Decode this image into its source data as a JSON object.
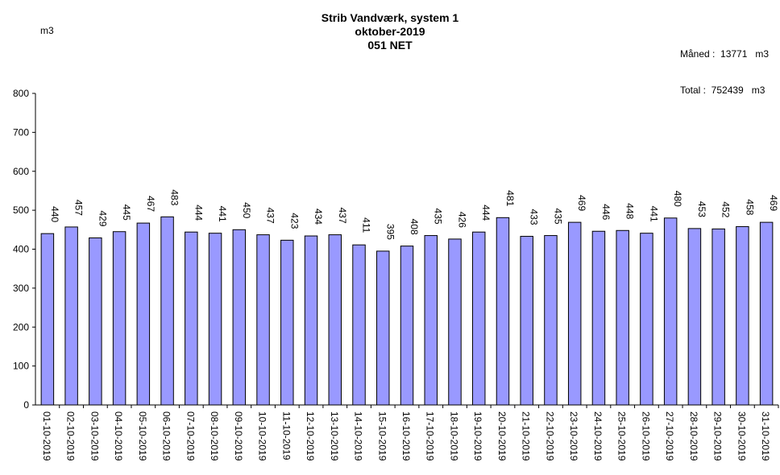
{
  "header": {
    "title": "Strib Vandværk, system 1",
    "subtitle": "oktober-2019",
    "subtitle2": "051 NET",
    "unit": "m3",
    "month_total": "Måned :  13771   m3",
    "grand_total": "Total :  752439   m3"
  },
  "colors": {
    "bar_fill": "#9999ff",
    "bar_stroke": "#000000",
    "axis": "#000000"
  },
  "chart_data": {
    "type": "bar",
    "title": "Strib Vandværk, system 1",
    "ylabel": "m3",
    "xlabel": "",
    "ylim": [
      0,
      800
    ],
    "yticks": [
      0,
      100,
      200,
      300,
      400,
      500,
      600,
      700,
      800
    ],
    "grid": false,
    "categories": [
      "01-10-2019",
      "02-10-2019",
      "03-10-2019",
      "04-10-2019",
      "05-10-2019",
      "06-10-2019",
      "07-10-2019",
      "08-10-2019",
      "09-10-2019",
      "10-10-2019",
      "11-10-2019",
      "12-10-2019",
      "13-10-2019",
      "14-10-2019",
      "15-10-2019",
      "16-10-2019",
      "17-10-2019",
      "18-10-2019",
      "19-10-2019",
      "20-10-2019",
      "21-10-2019",
      "22-10-2019",
      "23-10-2019",
      "24-10-2019",
      "25-10-2019",
      "26-10-2019",
      "27-10-2019",
      "28-10-2019",
      "29-10-2019",
      "30-10-2019",
      "31-10-2019"
    ],
    "values": [
      440,
      457,
      429,
      445,
      467,
      483,
      444,
      441,
      450,
      437,
      423,
      434,
      437,
      411,
      395,
      408,
      435,
      426,
      444,
      481,
      433,
      435,
      469,
      446,
      448,
      441,
      480,
      453,
      452,
      458,
      469
    ]
  }
}
